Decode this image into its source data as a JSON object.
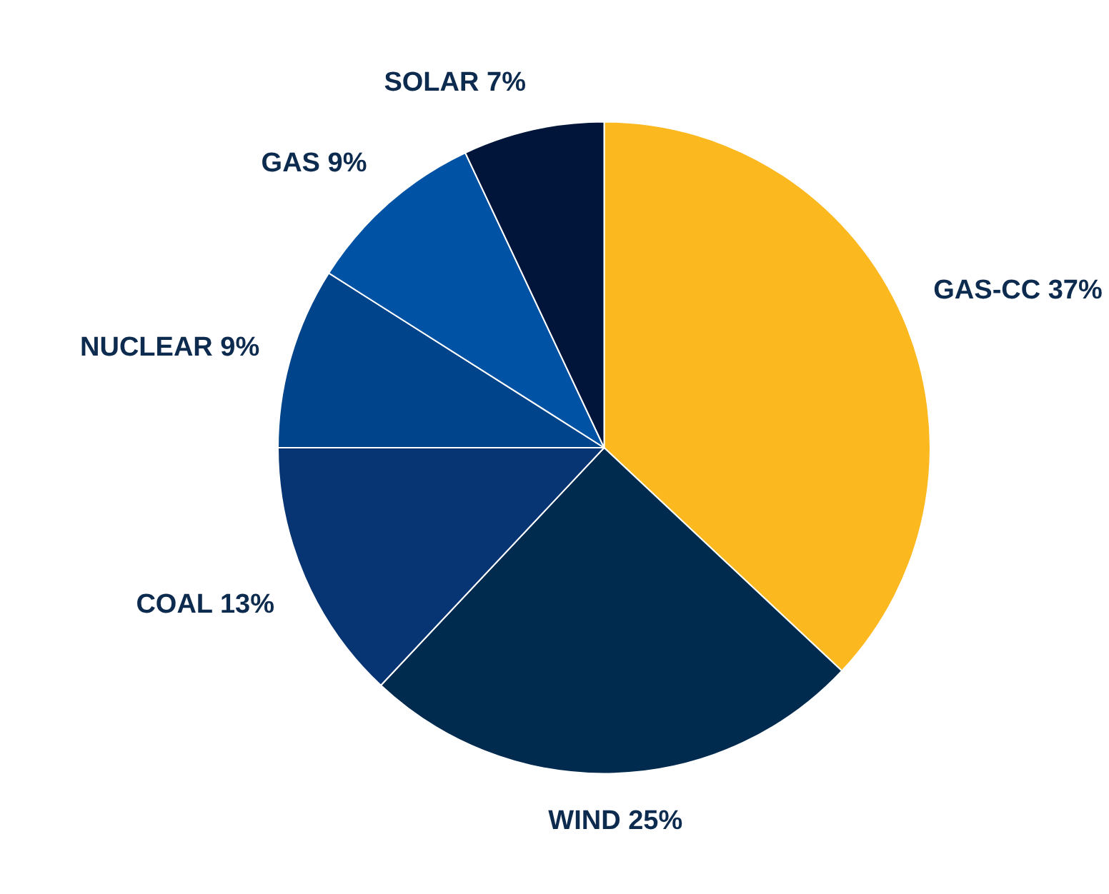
{
  "chart_data": {
    "type": "pie",
    "categories": [
      "GAS-CC",
      "WIND",
      "COAL",
      "NUCLEAR",
      "GAS",
      "SOLAR"
    ],
    "values": [
      37,
      25,
      13,
      9,
      9,
      7
    ],
    "value_labels": [
      "37%",
      "25%",
      "13%",
      "9%",
      "9%",
      "7%"
    ],
    "colors": [
      "#fbb81f",
      "#002a4e",
      "#073472",
      "#00448b",
      "#0053a4",
      "#001539"
    ],
    "legend": false
  }
}
